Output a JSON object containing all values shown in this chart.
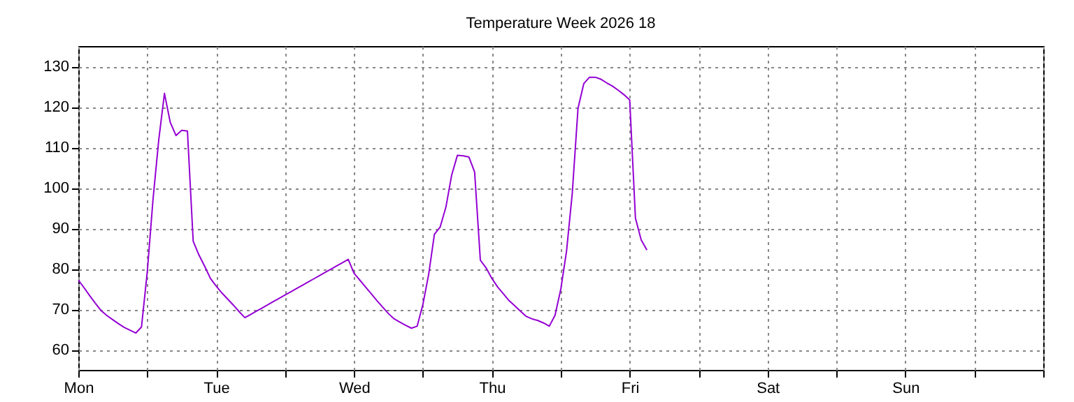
{
  "chart_data": {
    "type": "line",
    "title": "Temperature Week 2026 18",
    "categories": [
      "Mon",
      null,
      null,
      null,
      null,
      null,
      null,
      null,
      null,
      null,
      null,
      null,
      null,
      null,
      null,
      null,
      null,
      null,
      null,
      null,
      null,
      null,
      null,
      null,
      "Tue",
      null,
      null,
      null,
      null,
      null,
      null,
      null,
      null,
      null,
      null,
      null,
      null,
      null,
      null,
      null,
      null,
      null,
      null,
      null,
      null,
      null,
      null,
      null,
      "Wed",
      null,
      null,
      null,
      null,
      null,
      null,
      null,
      null,
      null,
      null,
      null,
      null,
      null,
      null,
      null,
      null,
      null,
      null,
      null,
      null,
      null,
      null,
      null,
      "Thu",
      null,
      null,
      null,
      null,
      null,
      null,
      null,
      null,
      null,
      null,
      null,
      null,
      null,
      null,
      null,
      null,
      null,
      null,
      null,
      null,
      null,
      null,
      null,
      "Fri",
      null,
      null,
      null,
      null,
      null,
      null,
      null,
      null,
      null,
      null,
      null,
      null,
      null,
      null,
      null,
      null,
      null,
      null,
      null,
      null,
      null,
      null,
      null,
      "Sat",
      null,
      null,
      null,
      null,
      null,
      null,
      null,
      null,
      null,
      null,
      null,
      null,
      null,
      null,
      null,
      null,
      null,
      null,
      null,
      null,
      null,
      null,
      null,
      "Sun",
      null,
      null,
      null,
      null,
      null,
      null,
      null,
      null,
      null,
      null,
      null,
      null,
      null,
      null,
      null,
      null,
      null,
      null,
      null,
      null,
      null,
      null,
      null,
      null
    ],
    "ylim": [
      55,
      135
    ],
    "yticks": [
      60,
      70,
      80,
      90,
      100,
      110,
      120,
      130
    ],
    "grid": true,
    "series": [
      {
        "color": "#9400d3",
        "values": [
          77.2,
          75.3,
          73.3,
          71.4,
          69.6,
          68.4,
          67.4,
          66.4,
          65.5,
          64.8,
          64.1,
          65.6,
          79.1,
          97.0,
          111.8,
          123.3,
          116.2,
          112.9,
          114.2,
          114.0,
          86.8,
          83.4,
          80.6,
          77.6,
          75.7,
          74.0,
          72.5,
          71.0,
          69.4,
          67.9,
          68.7,
          69.5,
          70.3,
          71.1,
          71.9,
          72.7,
          73.5,
          74.3,
          75.1,
          75.9,
          76.7,
          77.5,
          78.3,
          79.1,
          79.9,
          80.7,
          81.5,
          82.3,
          78.9,
          77.2,
          75.5,
          73.8,
          72.1,
          70.5,
          68.9,
          67.6,
          66.8,
          66.0,
          65.3,
          65.8,
          71.2,
          78.6,
          88.5,
          90.3,
          95.2,
          103.1,
          108,
          107.9,
          107.6,
          103.9,
          82.1,
          80.2,
          77.6,
          75.5,
          73.8,
          72.1,
          70.8,
          69.5,
          68.2,
          67.6,
          67.2,
          66.6,
          65.8,
          68.5,
          74.9,
          84.3,
          98.6,
          119.6,
          125.7,
          127.3,
          127.3,
          126.8,
          125.9,
          125.1,
          124.1,
          123.0,
          121.7,
          92.5,
          87.1,
          84.6,
          null,
          null,
          null,
          null,
          null,
          null,
          null,
          null,
          null,
          null,
          null,
          null,
          null,
          null,
          null,
          null,
          null,
          null,
          null,
          null,
          null,
          null,
          null,
          null,
          null,
          null,
          null,
          null,
          null,
          null,
          null,
          null,
          null,
          null,
          null,
          null,
          null,
          null,
          null,
          null,
          null,
          null,
          null,
          null,
          null,
          null,
          null,
          null,
          null,
          null,
          null,
          null,
          null,
          null,
          null,
          null,
          null,
          null,
          null,
          null,
          null,
          null,
          null,
          null,
          null,
          null,
          null,
          null,
          null
        ]
      }
    ]
  }
}
